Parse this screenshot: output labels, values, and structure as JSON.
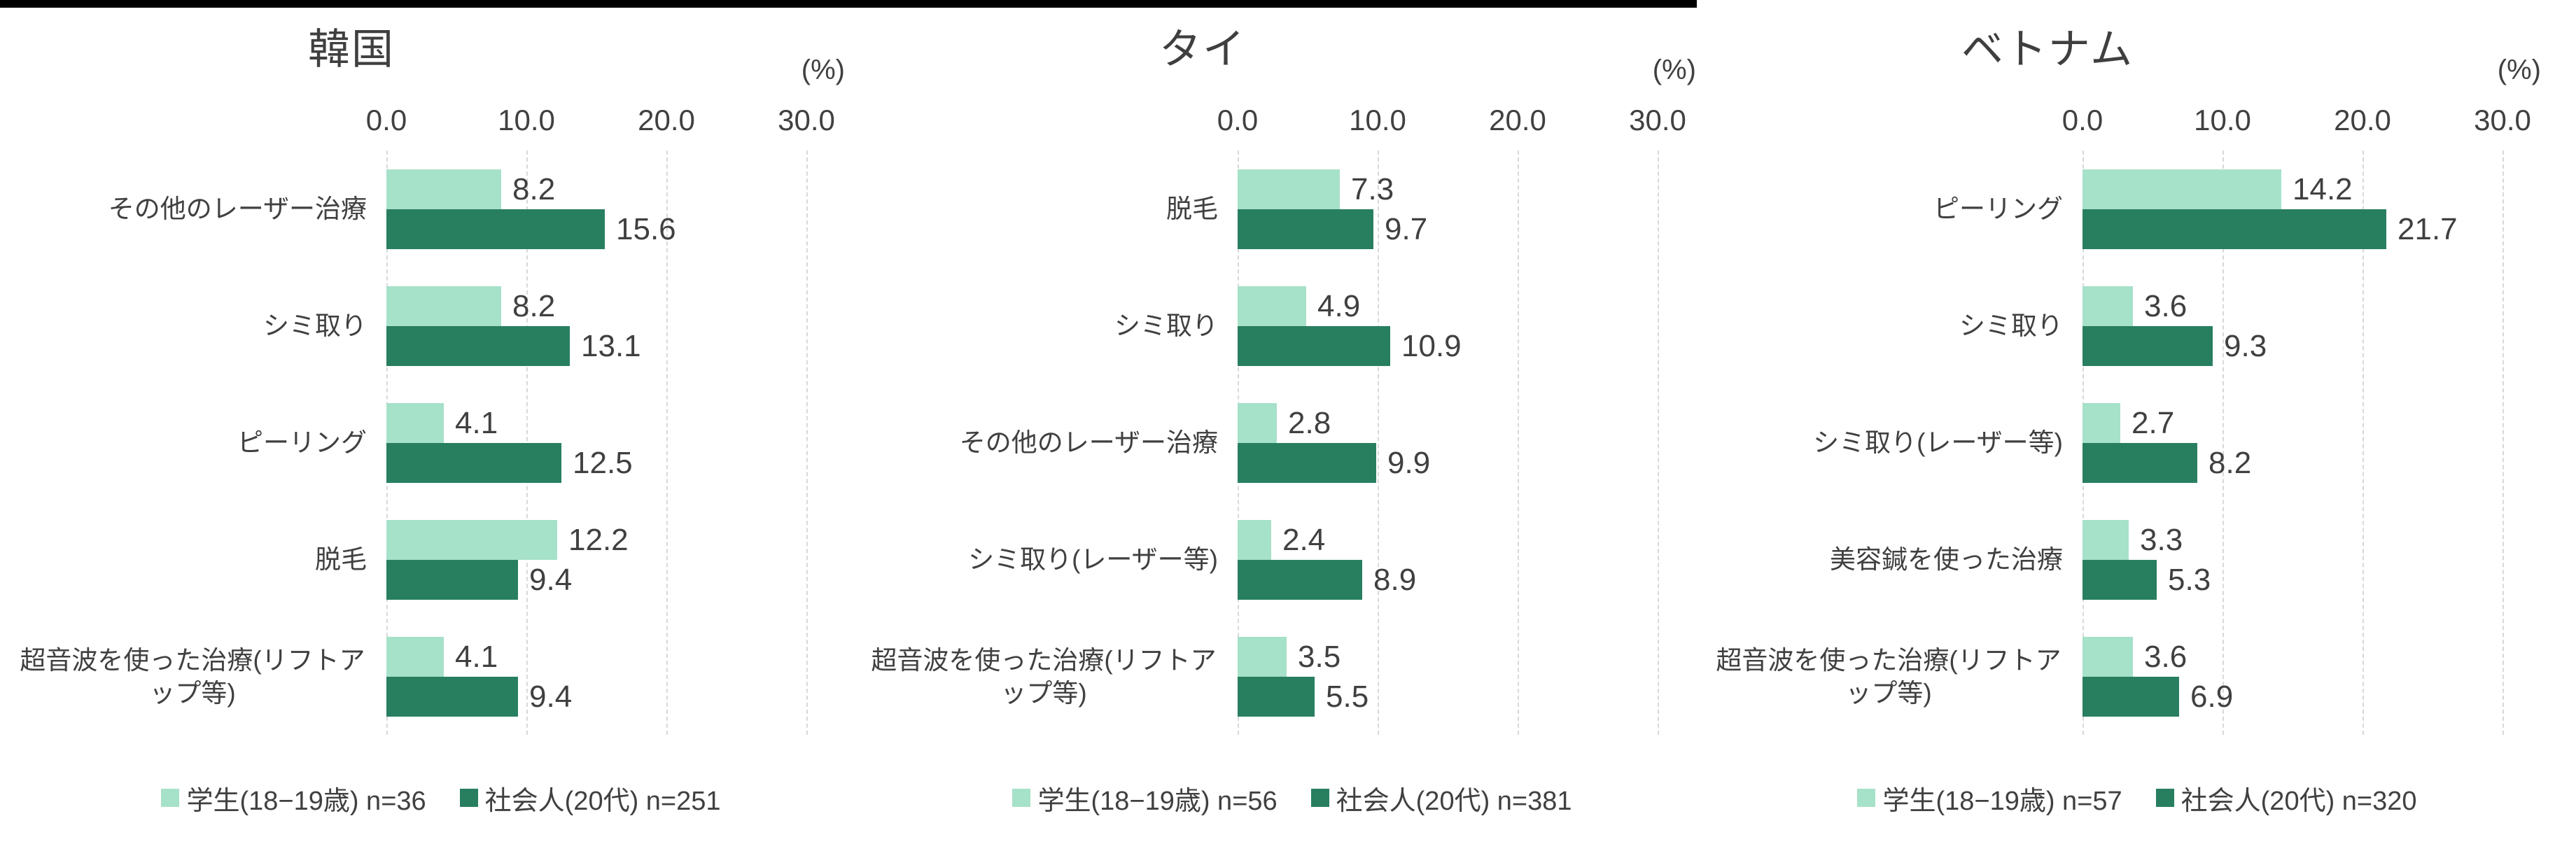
{
  "decor": {
    "top_rule_color": "#000000"
  },
  "colors": {
    "student": "#a6e1c9",
    "adult": "#287f60",
    "text": "#404040",
    "gridline": "#d9d9d9"
  },
  "axis": {
    "ticks": [
      "0.0",
      "10.0",
      "20.0",
      "30.0"
    ],
    "tick_values": [
      0,
      10,
      20,
      30
    ],
    "unit_label": "(%)",
    "min": 0,
    "max": 30
  },
  "chart_data": [
    {
      "type": "bar",
      "orientation": "horizontal",
      "title": "韓国",
      "xlabel": "(%)",
      "xlim": [
        0,
        30
      ],
      "xticks": [
        "0.0",
        "10.0",
        "20.0",
        "30.0"
      ],
      "grid": true,
      "legend_position": "bottom",
      "categories": [
        "その他のレーザー治療",
        "シミ取り",
        "ピーリング",
        "脱毛",
        "超音波を使った治療(リフトアップ等)"
      ],
      "series": [
        {
          "name": "学生(18−19歳) n=36",
          "color_key": "student",
          "values": [
            8.2,
            8.2,
            4.1,
            12.2,
            4.1
          ]
        },
        {
          "name": "社会人(20代) n=251",
          "color_key": "adult",
          "values": [
            15.6,
            13.1,
            12.5,
            9.4,
            9.4
          ]
        }
      ]
    },
    {
      "type": "bar",
      "orientation": "horizontal",
      "title": "タイ",
      "xlabel": "(%)",
      "xlim": [
        0,
        30
      ],
      "xticks": [
        "0.0",
        "10.0",
        "20.0",
        "30.0"
      ],
      "grid": true,
      "legend_position": "bottom",
      "categories": [
        "脱毛",
        "シミ取り",
        "その他のレーザー治療",
        "シミ取り(レーザー等)",
        "超音波を使った治療(リフトアップ等)"
      ],
      "series": [
        {
          "name": "学生(18−19歳) n=56",
          "color_key": "student",
          "values": [
            7.3,
            4.9,
            2.8,
            2.4,
            3.5
          ]
        },
        {
          "name": "社会人(20代) n=381",
          "color_key": "adult",
          "values": [
            9.7,
            10.9,
            9.9,
            8.9,
            5.5
          ]
        }
      ]
    },
    {
      "type": "bar",
      "orientation": "horizontal",
      "title": "ベトナム",
      "xlabel": "(%)",
      "xlim": [
        0,
        30
      ],
      "xticks": [
        "0.0",
        "10.0",
        "20.0",
        "30.0"
      ],
      "grid": true,
      "legend_position": "bottom",
      "categories": [
        "ピーリング",
        "シミ取り",
        "シミ取り(レーザー等)",
        "美容鍼を使った治療",
        "超音波を使った治療(リフトアップ等)"
      ],
      "series": [
        {
          "name": "学生(18−19歳) n=57",
          "color_key": "student",
          "values": [
            14.2,
            3.6,
            2.7,
            3.3,
            3.6
          ]
        },
        {
          "name": "社会人(20代) n=320",
          "color_key": "adult",
          "values": [
            21.7,
            9.3,
            8.2,
            5.3,
            6.9
          ]
        }
      ]
    }
  ]
}
